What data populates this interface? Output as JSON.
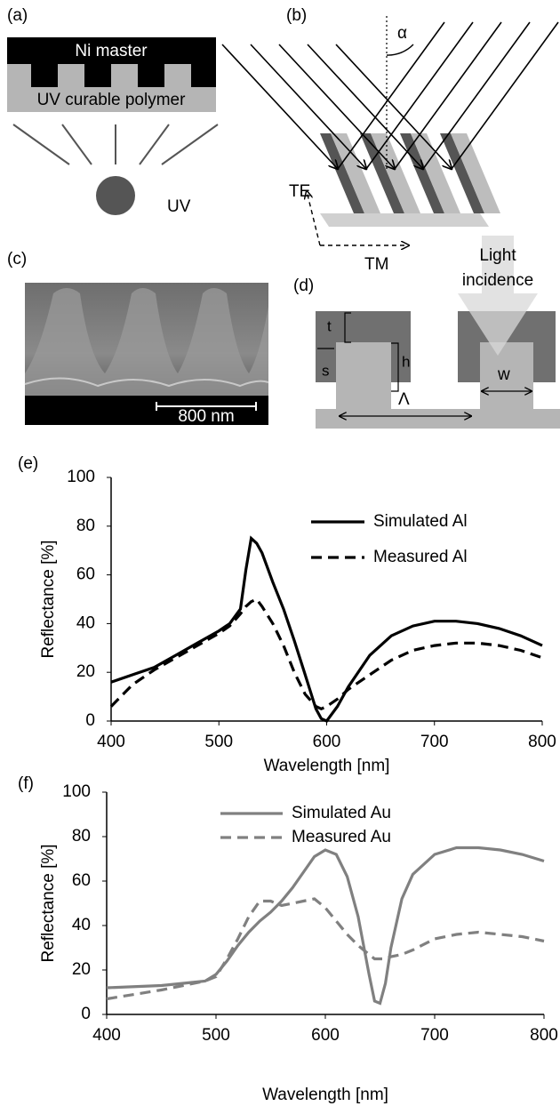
{
  "panel_a": {
    "label": "(a)",
    "master": "Ni master",
    "polymer": "UV curable polymer",
    "source": "UV"
  },
  "panel_b": {
    "label": "(b)",
    "angle": "α",
    "te": "TE",
    "tm": "TM"
  },
  "panel_c": {
    "label": "(c)",
    "scale": "800 nm"
  },
  "panel_d": {
    "label": "(d)",
    "light_1": "Light",
    "light_2": "incidence",
    "t": "t",
    "s": "s",
    "h": "h",
    "w": "w",
    "period": "Λ"
  },
  "chart_data": [
    {
      "type": "line",
      "title": "(e)",
      "x_label": "Wavelength [nm]",
      "y_label": "Reflectance [%]",
      "x": [
        400,
        420,
        440,
        460,
        480,
        500,
        510,
        520,
        525,
        530,
        535,
        540,
        550,
        560,
        570,
        580,
        590,
        595,
        600,
        610,
        620,
        640,
        660,
        680,
        700,
        720,
        740,
        760,
        780,
        800
      ],
      "series": [
        {
          "name": "Simulated Al",
          "color": "#000000",
          "style": "solid",
          "values": [
            16,
            19,
            22,
            27,
            32,
            37,
            40,
            46,
            62,
            75,
            73,
            69,
            57,
            46,
            33,
            19,
            5,
            1,
            0,
            6,
            14,
            27,
            35,
            39,
            41,
            41,
            40,
            38,
            35,
            31
          ]
        },
        {
          "name": "Measured Al",
          "color": "#000000",
          "style": "dashed",
          "values": [
            6,
            15,
            21,
            26,
            31,
            36,
            39,
            44,
            47,
            49,
            50,
            47,
            40,
            31,
            20,
            11,
            6,
            5,
            6,
            9,
            13,
            19,
            25,
            29,
            31,
            32,
            32,
            31,
            29,
            26
          ]
        }
      ],
      "xlim": [
        400,
        800
      ],
      "xticks": [
        400,
        500,
        600,
        700,
        800
      ],
      "ylim": [
        0,
        100
      ],
      "yticks": [
        0,
        20,
        40,
        60,
        80,
        100
      ],
      "grid": false
    },
    {
      "type": "line",
      "title": "(f)",
      "x_label": "Wavelength [nm]",
      "y_label": "Reflectance [%]",
      "x": [
        400,
        450,
        470,
        490,
        500,
        510,
        520,
        530,
        540,
        550,
        560,
        570,
        580,
        590,
        600,
        610,
        620,
        630,
        640,
        645,
        650,
        655,
        660,
        670,
        680,
        700,
        720,
        740,
        760,
        780,
        800
      ],
      "series": [
        {
          "name": "Simulated Au",
          "color": "#808080",
          "style": "solid",
          "values": [
            12,
            13,
            14,
            15,
            18,
            24,
            31,
            37,
            42,
            46,
            51,
            57,
            64,
            71,
            74,
            72,
            62,
            44,
            18,
            6,
            5,
            14,
            30,
            52,
            63,
            72,
            75,
            75,
            74,
            72,
            69
          ]
        },
        {
          "name": "Measured Au",
          "color": "#808080",
          "style": "dashed",
          "values": [
            7,
            11,
            13,
            15,
            17,
            25,
            34,
            44,
            51,
            51,
            49,
            50,
            51,
            52,
            48,
            42,
            36,
            31,
            27,
            25,
            25,
            25,
            26,
            27,
            29,
            34,
            36,
            37,
            36,
            35,
            33
          ]
        }
      ],
      "xlim": [
        400,
        800
      ],
      "xticks": [
        400,
        500,
        600,
        700,
        800
      ],
      "ylim": [
        0,
        100
      ],
      "yticks": [
        0,
        20,
        40,
        60,
        80,
        100
      ],
      "grid": false
    }
  ]
}
